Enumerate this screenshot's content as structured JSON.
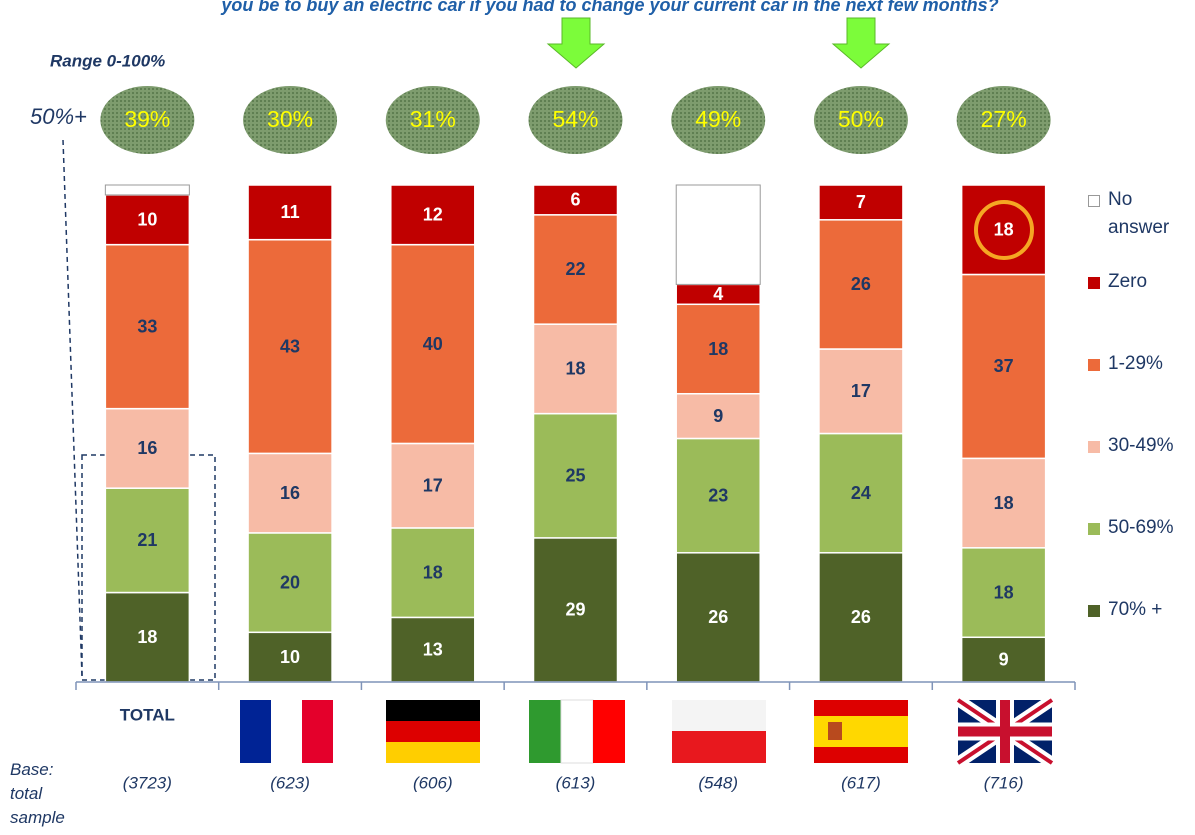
{
  "chart_data": {
    "type": "stacked_bar",
    "title": "you be to buy an electric car if you had to change your current car in the next few months?",
    "range_note": "Range 0-100%",
    "categories": [
      "TOTAL",
      null,
      null,
      null,
      null,
      null,
      null
    ],
    "bases": [
      "(3723)",
      "(623)",
      "(606)",
      "(613)",
      "(548)",
      "(617)",
      "(716)"
    ],
    "base_note": "Base: total sample",
    "share_50_plus": {
      "label": "50%+",
      "values": [
        39,
        30,
        31,
        54,
        49,
        50,
        27
      ],
      "value_labels": [
        "39%",
        "30%",
        "31%",
        "54%",
        "49%",
        "50%",
        "27%"
      ]
    },
    "ylim": [
      0,
      100
    ],
    "series": [
      {
        "name": "70% +",
        "color": "#4f6228",
        "label_color": "#ffffff",
        "values": [
          18,
          10,
          13,
          29,
          26,
          26,
          9
        ]
      },
      {
        "name": "50-69%",
        "color": "#9bbb59",
        "label_color": "#1f3864",
        "values": [
          21,
          20,
          18,
          25,
          23,
          24,
          18
        ]
      },
      {
        "name": "30-49%",
        "color": "#f7bba6",
        "label_color": "#1f3864",
        "values": [
          16,
          16,
          17,
          18,
          9,
          17,
          18
        ]
      },
      {
        "name": "1-29%",
        "color": "#ec6a3a",
        "label_color": "#1f3864",
        "values": [
          33,
          43,
          40,
          22,
          18,
          26,
          37
        ]
      },
      {
        "name": "Zero",
        "color": "#c00000",
        "label_color": "#ffffff",
        "values": [
          10,
          11,
          12,
          6,
          4,
          7,
          18
        ]
      },
      {
        "name": "No answer",
        "color": "#ffffff",
        "label_color": "#1f3864",
        "values": [
          2,
          0,
          0,
          0,
          20,
          0,
          0
        ],
        "value_labels": [
          null,
          null,
          null,
          null,
          null,
          null,
          null
        ]
      }
    ],
    "legend": "right"
  }
}
